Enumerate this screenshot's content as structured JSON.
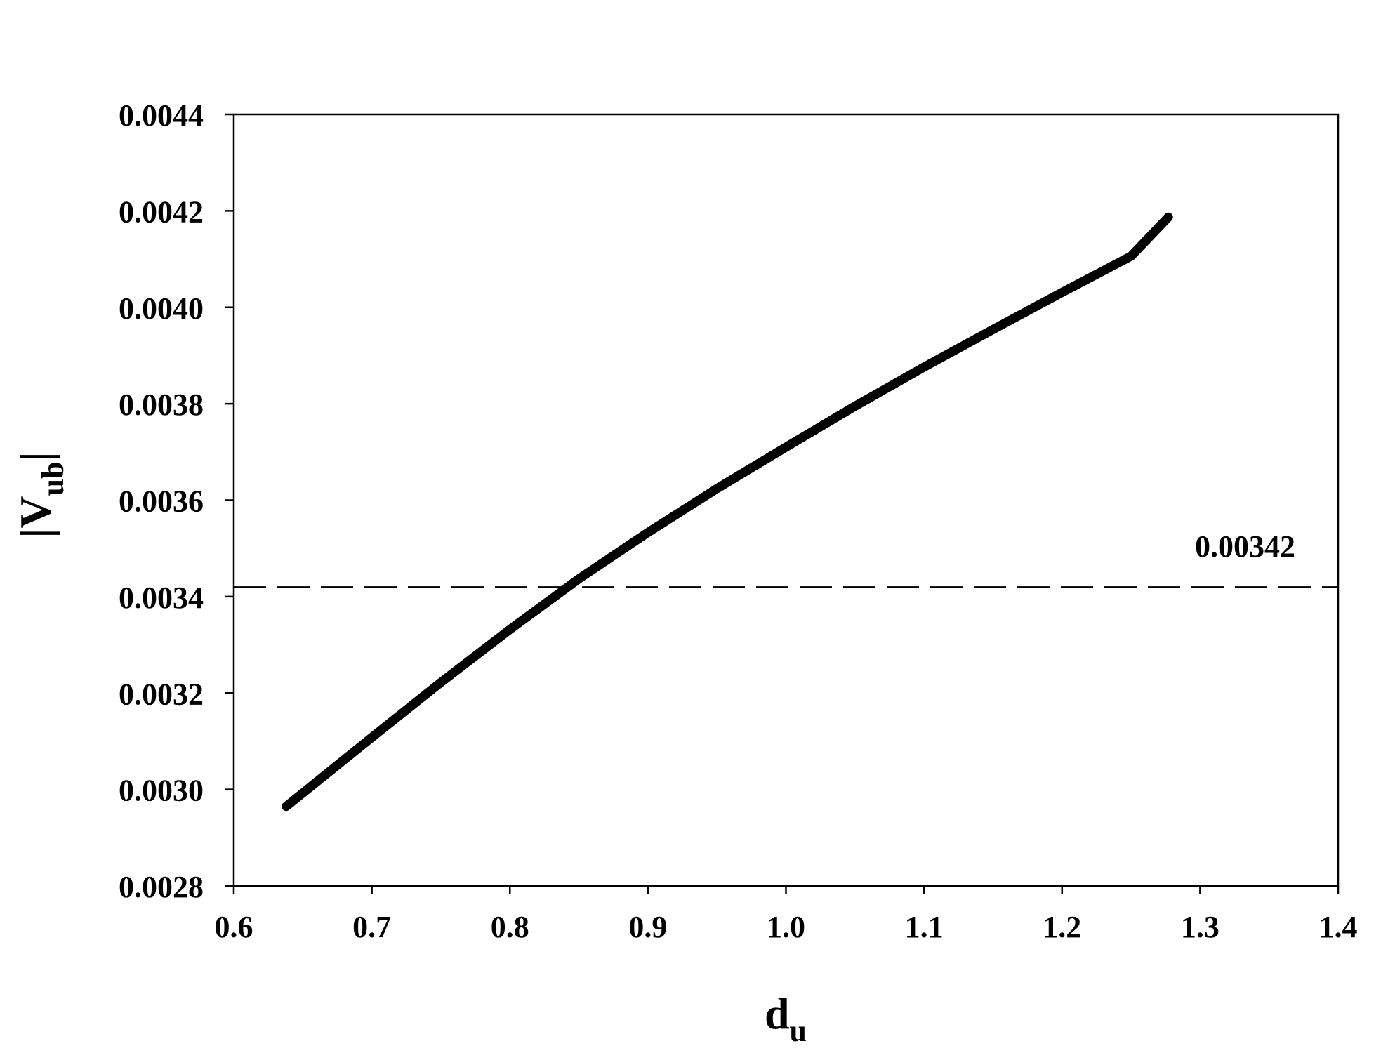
{
  "chart_data": {
    "type": "line",
    "xlabel": {
      "main": "d",
      "sub": "u"
    },
    "ylabel": {
      "open": "|V",
      "sub": "ub",
      "close": "|"
    },
    "xlim": [
      0.6,
      1.4
    ],
    "ylim": [
      0.0028,
      0.0044
    ],
    "x_ticks": [
      0.6,
      0.7,
      0.8,
      0.9,
      1.0,
      1.1,
      1.2,
      1.3,
      1.4
    ],
    "x_tick_labels": [
      "0.6",
      "0.7",
      "0.8",
      "0.9",
      "1.0",
      "1.1",
      "1.2",
      "1.3",
      "1.4"
    ],
    "y_ticks": [
      0.0028,
      0.003,
      0.0032,
      0.0034,
      0.0036,
      0.0038,
      0.004,
      0.0042,
      0.0044
    ],
    "y_tick_labels": [
      "0.0028",
      "0.0030",
      "0.0032",
      "0.0034",
      "0.0036",
      "0.0038",
      "0.0040",
      "0.0042",
      "0.0044"
    ],
    "grid": false,
    "series": [
      {
        "color": "#000000",
        "x": [
          0.638,
          0.7,
          0.75,
          0.8,
          0.85,
          0.9,
          0.95,
          1.0,
          1.05,
          1.1,
          1.15,
          1.2,
          1.25,
          1.277
        ],
        "y": [
          0.002965,
          0.003108,
          0.003222,
          0.003332,
          0.003437,
          0.003533,
          0.003624,
          0.00371,
          0.003795,
          0.003876,
          0.003954,
          0.004031,
          0.004106,
          0.004187
        ]
      }
    ],
    "reference_lines": [
      {
        "y": 0.00342,
        "style": "dashed",
        "label": "0.00342",
        "color": "#000000"
      }
    ]
  }
}
